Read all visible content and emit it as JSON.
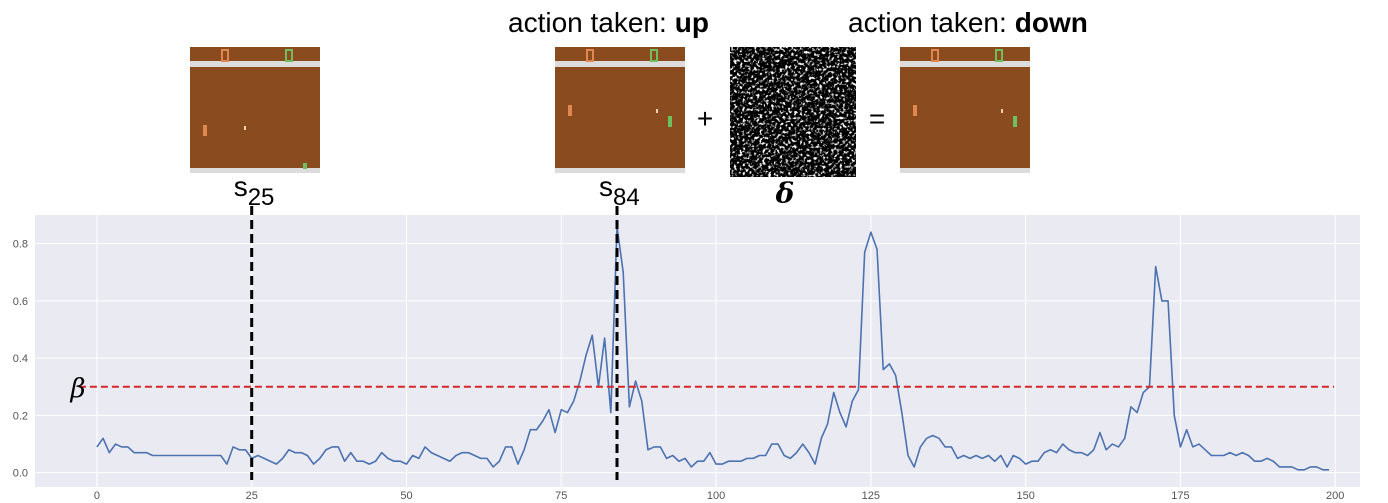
{
  "panel": {
    "actions": [
      {
        "prefix": "action taken:",
        "action": "up"
      },
      {
        "prefix": "action taken:",
        "action": "down"
      }
    ],
    "state_base": "s",
    "plus": "+",
    "equals": "=",
    "perturbation": "δ"
  },
  "chart_data": {
    "type": "line",
    "x": [
      0,
      1,
      2,
      3,
      4,
      5,
      6,
      7,
      8,
      9,
      10,
      11,
      12,
      13,
      14,
      15,
      16,
      17,
      18,
      19,
      20,
      21,
      22,
      23,
      24,
      25,
      26,
      27,
      28,
      29,
      30,
      31,
      32,
      33,
      34,
      35,
      36,
      37,
      38,
      39,
      40,
      41,
      42,
      43,
      44,
      45,
      46,
      47,
      48,
      49,
      50,
      51,
      52,
      53,
      54,
      55,
      56,
      57,
      58,
      59,
      60,
      61,
      62,
      63,
      64,
      65,
      66,
      67,
      68,
      69,
      70,
      71,
      72,
      73,
      74,
      75,
      76,
      77,
      78,
      79,
      80,
      81,
      82,
      83,
      84,
      85,
      86,
      87,
      88,
      89,
      90,
      91,
      92,
      93,
      94,
      95,
      96,
      97,
      98,
      99,
      100,
      101,
      102,
      103,
      104,
      105,
      106,
      107,
      108,
      109,
      110,
      111,
      112,
      113,
      114,
      115,
      116,
      117,
      118,
      119,
      120,
      121,
      122,
      123,
      124,
      125,
      126,
      127,
      128,
      129,
      130,
      131,
      132,
      133,
      134,
      135,
      136,
      137,
      138,
      139,
      140,
      141,
      142,
      143,
      144,
      145,
      146,
      147,
      148,
      149,
      150,
      151,
      152,
      153,
      154,
      155,
      156,
      157,
      158,
      159,
      160,
      161,
      162,
      163,
      164,
      165,
      166,
      167,
      168,
      169,
      170,
      171,
      172,
      173,
      174,
      175,
      176,
      177,
      178,
      179,
      180,
      181,
      182,
      183,
      184,
      185,
      186,
      187,
      188,
      189,
      190,
      191,
      192,
      193,
      194,
      195,
      196,
      197,
      198,
      199
    ],
    "series": [
      {
        "color": "#4c72b0",
        "values": [
          0.09,
          0.12,
          0.07,
          0.1,
          0.09,
          0.09,
          0.07,
          0.07,
          0.07,
          0.06,
          0.06,
          0.06,
          0.06,
          0.06,
          0.06,
          0.06,
          0.06,
          0.06,
          0.06,
          0.06,
          0.06,
          0.03,
          0.09,
          0.08,
          0.08,
          0.05,
          0.06,
          0.05,
          0.04,
          0.03,
          0.05,
          0.08,
          0.07,
          0.07,
          0.06,
          0.03,
          0.05,
          0.08,
          0.09,
          0.09,
          0.04,
          0.07,
          0.04,
          0.04,
          0.03,
          0.04,
          0.07,
          0.05,
          0.04,
          0.04,
          0.03,
          0.06,
          0.05,
          0.09,
          0.07,
          0.06,
          0.05,
          0.04,
          0.06,
          0.07,
          0.07,
          0.06,
          0.05,
          0.05,
          0.02,
          0.04,
          0.09,
          0.09,
          0.03,
          0.08,
          0.15,
          0.15,
          0.18,
          0.22,
          0.14,
          0.22,
          0.21,
          0.25,
          0.32,
          0.41,
          0.48,
          0.3,
          0.47,
          0.21,
          0.86,
          0.7,
          0.23,
          0.32,
          0.25,
          0.08,
          0.09,
          0.09,
          0.05,
          0.06,
          0.04,
          0.05,
          0.02,
          0.04,
          0.04,
          0.07,
          0.03,
          0.03,
          0.04,
          0.04,
          0.04,
          0.05,
          0.05,
          0.06,
          0.06,
          0.1,
          0.1,
          0.06,
          0.05,
          0.07,
          0.1,
          0.07,
          0.03,
          0.12,
          0.17,
          0.28,
          0.21,
          0.16,
          0.25,
          0.29,
          0.77,
          0.84,
          0.78,
          0.36,
          0.38,
          0.34,
          0.21,
          0.06,
          0.02,
          0.09,
          0.12,
          0.13,
          0.12,
          0.09,
          0.09,
          0.05,
          0.06,
          0.05,
          0.06,
          0.05,
          0.06,
          0.04,
          0.06,
          0.02,
          0.06,
          0.05,
          0.03,
          0.04,
          0.04,
          0.07,
          0.08,
          0.07,
          0.1,
          0.08,
          0.07,
          0.07,
          0.06,
          0.08,
          0.14,
          0.08,
          0.1,
          0.09,
          0.12,
          0.23,
          0.21,
          0.28,
          0.3,
          0.72,
          0.6,
          0.6,
          0.2,
          0.09,
          0.15,
          0.09,
          0.1,
          0.08,
          0.06,
          0.06,
          0.06,
          0.07,
          0.06,
          0.07,
          0.06,
          0.04,
          0.04,
          0.05,
          0.04,
          0.02,
          0.02,
          0.02,
          0.01,
          0.01,
          0.02,
          0.02,
          0.01,
          0.01
        ]
      }
    ],
    "xlim": [
      -10,
      204
    ],
    "ylim": [
      -0.05,
      0.9
    ],
    "xticks": [
      0,
      25,
      50,
      75,
      100,
      125,
      150,
      175,
      200
    ],
    "yticks": [
      {
        "value": 0,
        "label": "0.0"
      },
      0.2,
      0.4,
      0.6,
      0.8
    ],
    "grid": true,
    "threshold": {
      "label": "β",
      "value": 0.3,
      "color": "#d62728"
    },
    "vlines": [
      25,
      84
    ]
  }
}
